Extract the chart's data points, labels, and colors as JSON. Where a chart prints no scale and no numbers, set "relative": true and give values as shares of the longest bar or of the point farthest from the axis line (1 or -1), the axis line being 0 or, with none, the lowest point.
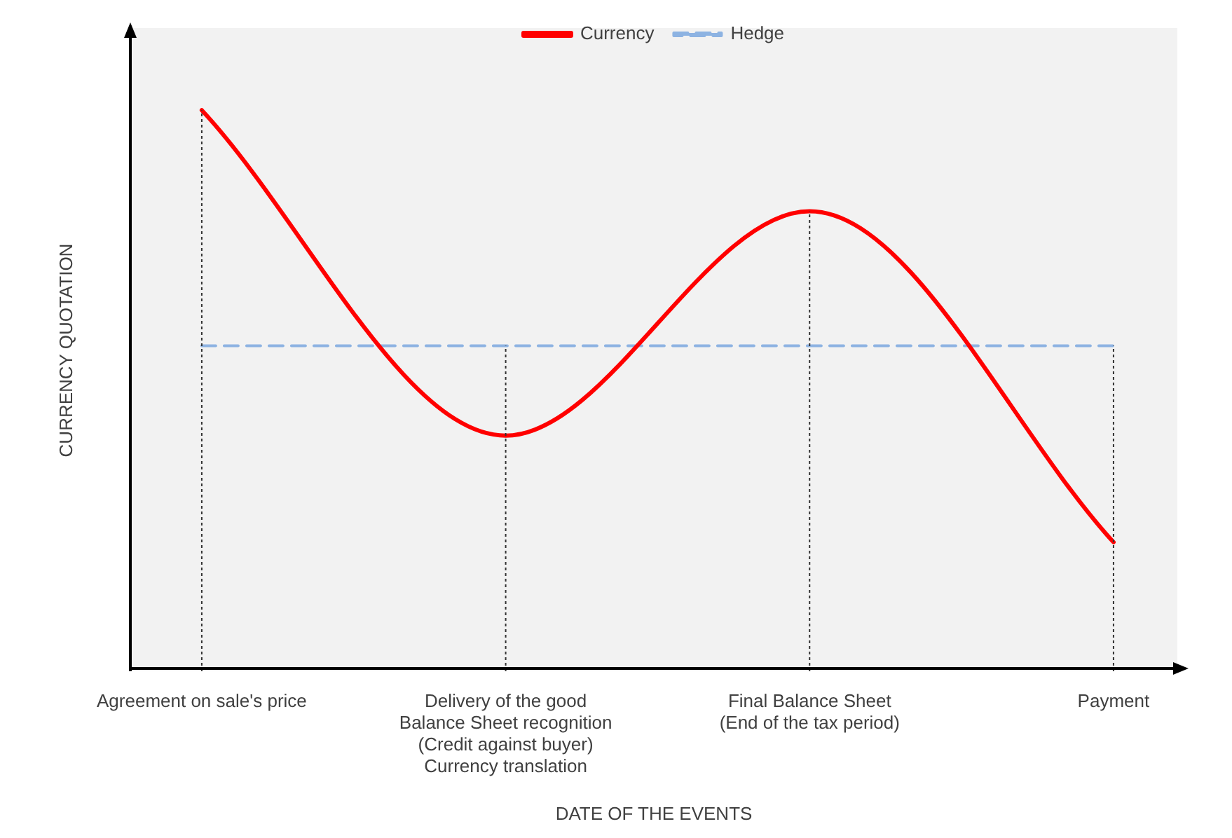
{
  "chart_data": {
    "type": "line",
    "relative": true,
    "xlabel": "DATE OF THE EVENTS",
    "ylabel": "CURRENCY QUOTATION",
    "categories": [
      "Agreement on sale's price",
      "Delivery of the good\nBalance Sheet recognition\n(Credit against buyer)\nCurrency translation",
      "Final Balance Sheet\n(End of the tax period)",
      "Payment"
    ],
    "series": [
      {
        "name": "Currency",
        "color": "#ff0000",
        "line_style": "solid",
        "values": [
          1,
          0.42,
          0.82,
          0.23
        ]
      },
      {
        "name": "Hedge",
        "color": "#8db3e2",
        "line_style": "dashed",
        "values": [
          0.58,
          0.58,
          0.58,
          0.58
        ]
      }
    ],
    "ref_lines": [
      {
        "axis": "x",
        "value": "Agreement on sale's price",
        "line_style": "dotted",
        "color": "#333333"
      },
      {
        "axis": "x",
        "value": "Delivery of the good\nBalance Sheet recognition\n(Credit against buyer)\nCurrency translation",
        "line_style": "dotted",
        "color": "#333333"
      },
      {
        "axis": "x",
        "value": "Final Balance Sheet\n(End of the tax period)",
        "line_style": "dotted",
        "color": "#333333"
      },
      {
        "axis": "x",
        "value": "Payment",
        "line_style": "dotted",
        "color": "#333333"
      }
    ],
    "marker": "none",
    "legend": "top"
  }
}
